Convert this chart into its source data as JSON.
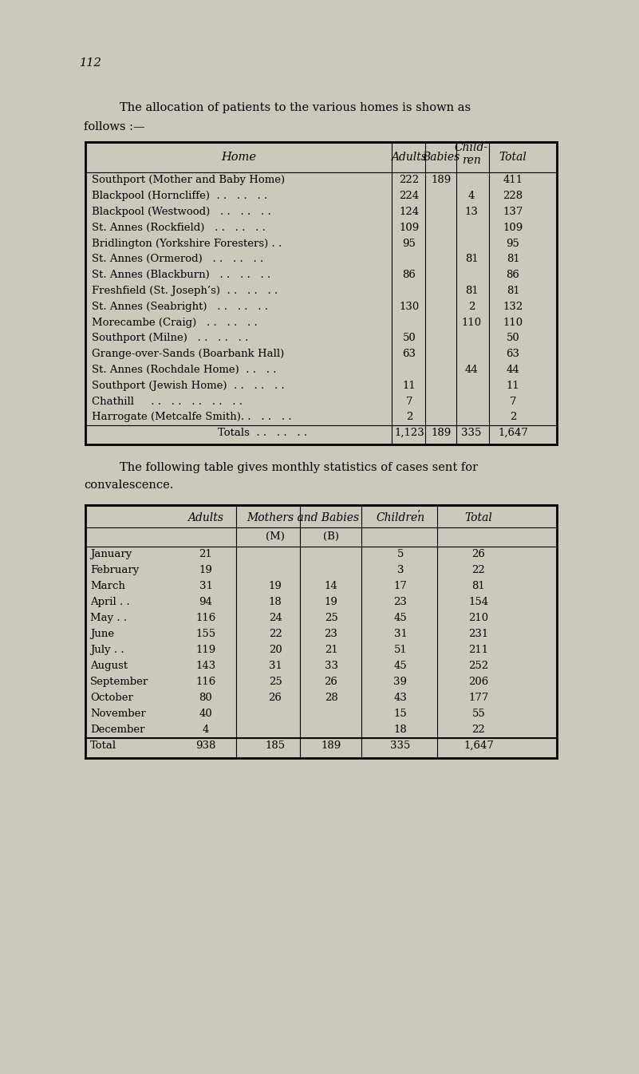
{
  "bg_color": "#cbc8bc",
  "page_num": "112",
  "intro_text1": "The allocation of patients to the various homes is shown as",
  "intro_text2": "follows :—",
  "table1_rows": [
    [
      "Southport (Mother and Baby Home)",
      "222",
      "189",
      "",
      "411"
    ],
    [
      "Blackpool (Horncliffe)  . .   . .   . .",
      "224",
      "",
      "4",
      "228"
    ],
    [
      "Blackpool (Westwood)   . .   . .   . .",
      "124",
      "",
      "13",
      "137"
    ],
    [
      "St. Annes (Rockfield)   . .   . .   . .",
      "109",
      "",
      "",
      "109"
    ],
    [
      "Bridlington (Yorkshire Foresters) . .",
      "95",
      "",
      "",
      "95"
    ],
    [
      "St. Annes (Ormerod)   . .   . .   . .",
      "",
      "",
      "81",
      "81"
    ],
    [
      "St. Annes (Blackburn)   . .   . .   . .",
      "86",
      "",
      "",
      "86"
    ],
    [
      "Freshfield (St. Joseph’s)  . .   . .   . .",
      "",
      "",
      "81",
      "81"
    ],
    [
      "St. Annes (Seabright)   . .   . .   . .",
      "130",
      "",
      "2",
      "132"
    ],
    [
      "Morecambe (Craig)   . .   . .   . .",
      "",
      "",
      "110",
      "110"
    ],
    [
      "Southport (Milne)   . .   . .   . .",
      "50",
      "",
      "",
      "50"
    ],
    [
      "Grange-over-Sands (Boarbank Hall)",
      "63",
      "",
      "",
      "63"
    ],
    [
      "St. Annes (Rochdale Home)  . .   . .",
      "",
      "",
      "44",
      "44"
    ],
    [
      "Southport (Jewish Home)  . .   . .   . .",
      "11",
      "",
      "",
      "11"
    ],
    [
      "Chathill     . .   . .   . .   . .   . .",
      "7",
      "",
      "",
      "7"
    ],
    [
      "Harrogate (Metcalfe Smith). .   . .   . .",
      "2",
      "",
      "",
      "2"
    ]
  ],
  "table1_totals": [
    "Totals  . .   . .   . .",
    "1,123",
    "189",
    "335",
    "1,647"
  ],
  "middle_text1": "The following table gives monthly statistics of cases sent for",
  "middle_text2": "convalescence.",
  "table2_rows": [
    [
      "January",
      "21",
      "",
      "",
      "5",
      "26"
    ],
    [
      "February",
      "19",
      "",
      "",
      "3",
      "22"
    ],
    [
      "March",
      "31",
      "19",
      "14",
      "17",
      "81"
    ],
    [
      "April . .",
      "94",
      "18",
      "19",
      "23",
      "154"
    ],
    [
      "May . .",
      "116",
      "24",
      "25",
      "45",
      "210"
    ],
    [
      "June",
      "155",
      "22",
      "23",
      "31",
      "231"
    ],
    [
      "July . .",
      "119",
      "20",
      "21",
      "51",
      "211"
    ],
    [
      "August",
      "143",
      "31",
      "33",
      "45",
      "252"
    ],
    [
      "September",
      "116",
      "25",
      "26",
      "39",
      "206"
    ],
    [
      "October",
      "80",
      "26",
      "28",
      "43",
      "177"
    ],
    [
      "November",
      "40",
      "",
      "",
      "15",
      "55"
    ],
    [
      "December",
      "4",
      "",
      "",
      "18",
      "22"
    ]
  ],
  "table2_totals": [
    "Total",
    "938",
    "185",
    "189",
    "335",
    "1,647"
  ]
}
